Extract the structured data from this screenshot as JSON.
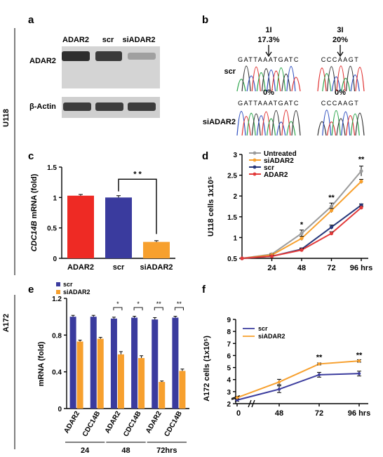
{
  "panel_labels": {
    "a": "a",
    "b": "b",
    "c": "c",
    "d": "d",
    "e": "e",
    "f": "f"
  },
  "side_labels": {
    "u118": "U118",
    "a172": "A172"
  },
  "blot": {
    "lanes": [
      "ADAR2",
      "scr",
      "siADAR2"
    ],
    "rows": [
      "ADAR2",
      "β-Actin"
    ],
    "band_intensity": {
      "ADAR2": [
        1.0,
        0.95,
        0.35
      ],
      "β-Actin": [
        1.0,
        1.0,
        1.0
      ]
    }
  },
  "sequencing": {
    "sites": [
      {
        "name": "1I",
        "scr_pct": "17.3%",
        "si_pct": "0%",
        "seq_top": "GATTAAATGATC",
        "seq_bot": "GATTAAATGATC"
      },
      {
        "name": "3I",
        "scr_pct": "20%",
        "si_pct": "0%",
        "seq_top": "CCCAAGT",
        "seq_bot": "CCCAAGT"
      }
    ],
    "rows": [
      "scr",
      "siADAR2"
    ]
  },
  "chart_data": [
    {
      "panel": "c",
      "type": "bar",
      "ylabel_italic": "CDC14B",
      "ylabel_rest": " mRNA (fold)",
      "categories": [
        "ADAR2",
        "scr",
        "siADAR2"
      ],
      "values": [
        1.03,
        1.0,
        0.27
      ],
      "errors": [
        0.02,
        0.03,
        0.02
      ],
      "colors": [
        "#ee2a24",
        "#3a3b9e",
        "#f7a02e"
      ],
      "ylim": [
        0,
        1.5
      ],
      "yticks": [
        "0",
        "0.5",
        "1",
        "1.5"
      ],
      "significance": "* *"
    },
    {
      "panel": "d",
      "type": "line",
      "ylabel": "U118 cells 1x10⁵",
      "x": [
        "0",
        "24",
        "48",
        "72",
        "96 hrs"
      ],
      "xticks_shown": [
        "24",
        "48",
        "72",
        "96 hrs"
      ],
      "ylim": [
        0.5,
        3
      ],
      "yticks": [
        "0.5",
        "1",
        "1.5",
        "2",
        "2.5",
        "3"
      ],
      "series": [
        {
          "name": "Untreated",
          "color": "#9b9b9b",
          "values": [
            0.5,
            0.6,
            1.1,
            1.75,
            2.6
          ],
          "errors": [
            0,
            0.02,
            0.08,
            0.08,
            0.12
          ]
        },
        {
          "name": "siADAR2",
          "color": "#f7a02e",
          "values": [
            0.5,
            0.58,
            0.98,
            1.65,
            2.35
          ],
          "errors": [
            0,
            0.02,
            0.05,
            0.05,
            0.05
          ]
        },
        {
          "name": "scr",
          "color": "#26377a",
          "values": [
            0.5,
            0.55,
            0.72,
            1.25,
            1.78
          ],
          "errors": [
            0,
            0.02,
            0.03,
            0.05,
            0.03
          ]
        },
        {
          "name": "ADAR2",
          "color": "#e23a3a",
          "values": [
            0.5,
            0.55,
            0.7,
            1.1,
            1.72
          ],
          "errors": [
            0,
            0.02,
            0.03,
            0.04,
            0.03
          ]
        }
      ],
      "annotations": [
        {
          "x": "48",
          "text": "*"
        },
        {
          "x": "72",
          "text": "**"
        },
        {
          "x": "96 hrs",
          "text": "**"
        }
      ]
    },
    {
      "panel": "e",
      "type": "bar",
      "ylabel": "mRNA (fold)",
      "ylim": [
        0,
        1.2
      ],
      "yticks": [
        "0",
        "0.4",
        "0.8",
        "1.2"
      ],
      "legend": [
        {
          "name": "scr",
          "color": "#3a3b9e"
        },
        {
          "name": "siADAR2",
          "color": "#f7a02e"
        }
      ],
      "categories": [
        "ADAR2",
        "CDC14B",
        "ADAR2",
        "CDC14B",
        "ADAR2",
        "CDC14B"
      ],
      "groups": [
        "24",
        "48",
        "72hrs"
      ],
      "series": [
        {
          "name": "scr",
          "values": [
            1.0,
            1.0,
            0.98,
            0.99,
            0.97,
            0.99
          ],
          "errors": [
            0.015,
            0.015,
            0.015,
            0.015,
            0.02,
            0.015
          ]
        },
        {
          "name": "siADAR2",
          "values": [
            0.73,
            0.76,
            0.59,
            0.55,
            0.29,
            0.41
          ],
          "errors": [
            0.015,
            0.015,
            0.03,
            0.025,
            0.01,
            0.02
          ]
        }
      ],
      "significance": [
        "",
        "",
        "*",
        "*",
        "**",
        "**"
      ]
    },
    {
      "panel": "f",
      "type": "line",
      "ylabel": "A172 cells (1x10⁵)",
      "x": [
        "0",
        "48",
        "72",
        "96 hrs"
      ],
      "ylim": [
        2,
        9
      ],
      "yticks": [
        "2",
        "3",
        "4",
        "5",
        "6",
        "7",
        "8",
        "9"
      ],
      "series": [
        {
          "name": "scr",
          "color": "#3c3d9e",
          "values": [
            2.3,
            3.2,
            4.4,
            4.5
          ],
          "errors": [
            0.1,
            0.28,
            0.2,
            0.2
          ]
        },
        {
          "name": "siADAR2",
          "color": "#f7a02e",
          "values": [
            2.5,
            3.8,
            5.3,
            5.55
          ],
          "errors": [
            0.1,
            0.22,
            0.08,
            0.1
          ]
        }
      ],
      "annotations": [
        {
          "x": "72",
          "text": "**"
        },
        {
          "x": "96 hrs",
          "text": "**"
        }
      ]
    }
  ]
}
